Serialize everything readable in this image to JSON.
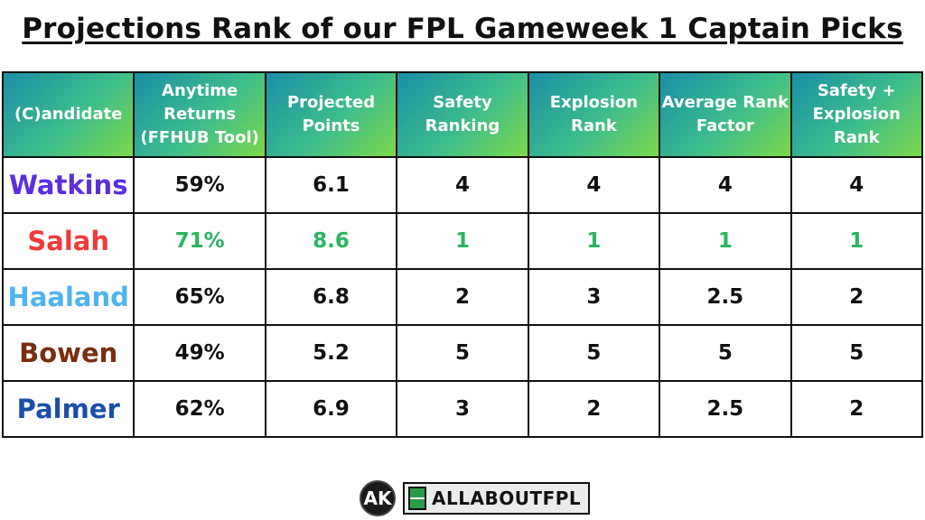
{
  "title": "Projections Rank of our FPL Gameweek 1 Captain Picks",
  "columns": [
    "(C)andidate",
    "Anytime Returns (FFHUB Tool)",
    "Projected Points",
    "Safety Ranking",
    "Explosion Rank",
    "Average Rank Factor",
    "Safety + Explosion Rank"
  ],
  "rows": [
    {
      "name": "Watkins",
      "name_color": "#5b2ee0",
      "returns": "59%",
      "projected": "6.1",
      "safety": "4",
      "explosion": "4",
      "average": "4",
      "combined": "4",
      "highlight": false
    },
    {
      "name": "Salah",
      "name_color": "#ef3b3b",
      "returns": "71%",
      "projected": "8.6",
      "safety": "1",
      "explosion": "1",
      "average": "1",
      "combined": "1",
      "highlight": true
    },
    {
      "name": "Haaland",
      "name_color": "#4fb4ee",
      "returns": "65%",
      "projected": "6.8",
      "safety": "2",
      "explosion": "3",
      "average": "2.5",
      "combined": "2",
      "highlight": false
    },
    {
      "name": "Bowen",
      "name_color": "#7a2e10",
      "returns": "49%",
      "projected": "5.2",
      "safety": "5",
      "explosion": "5",
      "average": "5",
      "combined": "5",
      "highlight": false
    },
    {
      "name": "Palmer",
      "name_color": "#1a4fa8",
      "returns": "62%",
      "projected": "6.9",
      "safety": "3",
      "explosion": "2",
      "average": "2.5",
      "combined": "2",
      "highlight": false
    }
  ],
  "highlight_color": "#2ab560",
  "logo": {
    "badge": "AK",
    "brand": "ALLABOUTFPL"
  }
}
